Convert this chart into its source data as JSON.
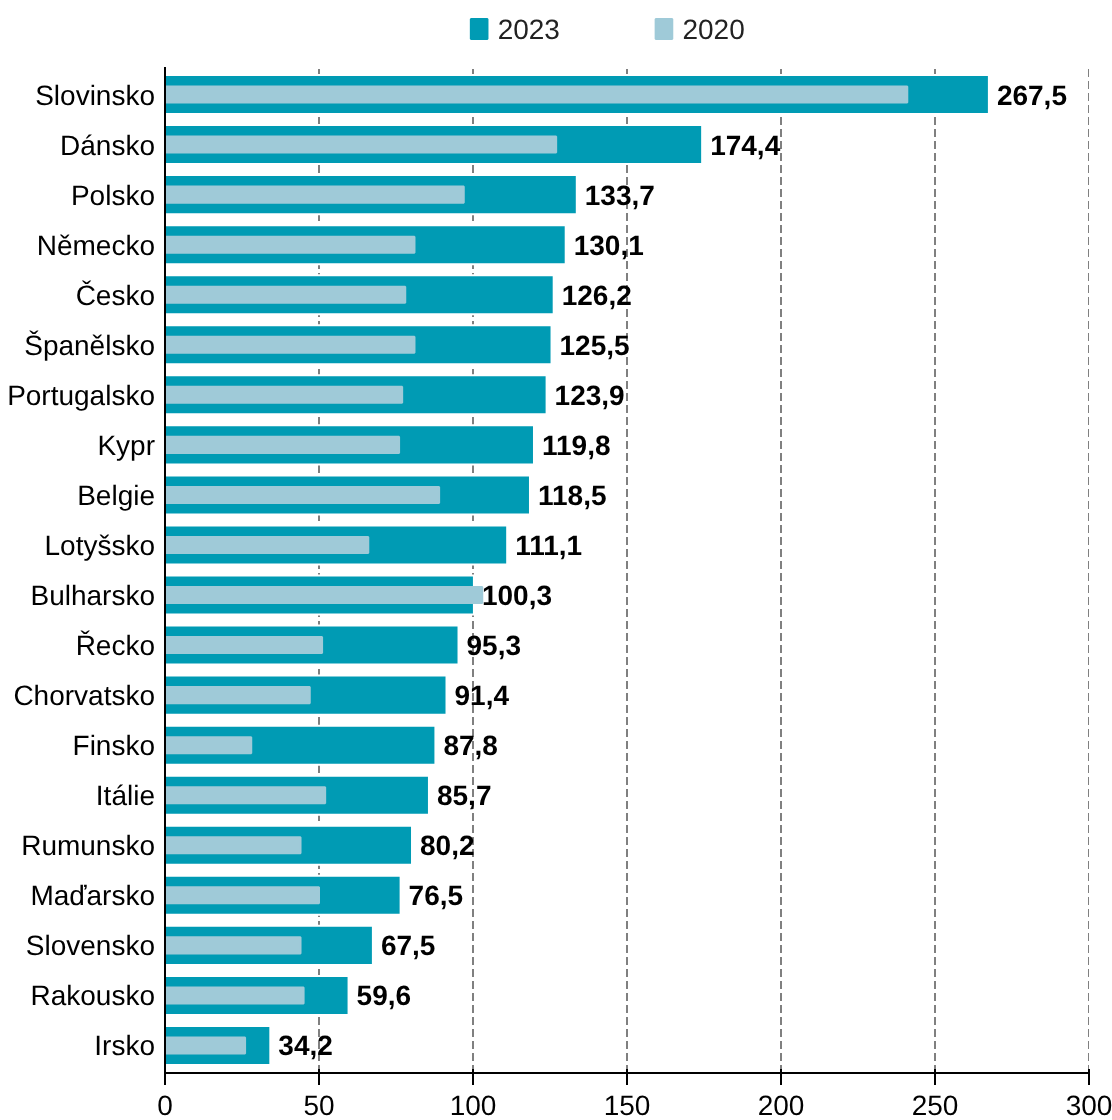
{
  "chart_data": {
    "type": "bar",
    "orientation": "horizontal",
    "categories": [
      "Slovinsko",
      "Dánsko",
      "Polsko",
      "Německo",
      "Česko",
      "Španělsko",
      "Portugalsko",
      "Kypr",
      "Belgie",
      "Lotyšsko",
      "Bulharsko",
      "Řecko",
      "Chorvatsko",
      "Finsko",
      "Itálie",
      "Rumunsko",
      "Maďarsko",
      "Slovensko",
      "Rakousko",
      "Irsko"
    ],
    "series": [
      {
        "name": "2023",
        "color": "#009bb4",
        "values": [
          267.5,
          174.4,
          133.7,
          130.1,
          126.2,
          125.5,
          123.9,
          119.8,
          118.5,
          111.1,
          100.3,
          95.3,
          91.4,
          87.8,
          85.7,
          80.2,
          76.5,
          67.5,
          59.6,
          34.2
        ],
        "value_labels": [
          "267,5",
          "174,4",
          "133,7",
          "130,1",
          "126,2",
          "125,5",
          "123,9",
          "119,8",
          "118,5",
          "111,1",
          "100,3",
          "95,3",
          "91,4",
          "87,8",
          "85,7",
          "80,2",
          "76,5",
          "67,5",
          "59,6",
          "34,2"
        ]
      },
      {
        "name": "2020",
        "color": "#9fcad8",
        "values": [
          241,
          127,
          97,
          81,
          78,
          81,
          77,
          76,
          89,
          66,
          103,
          51,
          47,
          28,
          52,
          44,
          50,
          44,
          45,
          26
        ]
      }
    ],
    "xlim": [
      0,
      300
    ],
    "xticks": [
      0,
      50,
      100,
      150,
      200,
      250,
      300
    ],
    "grid": "x",
    "legend": "top"
  }
}
